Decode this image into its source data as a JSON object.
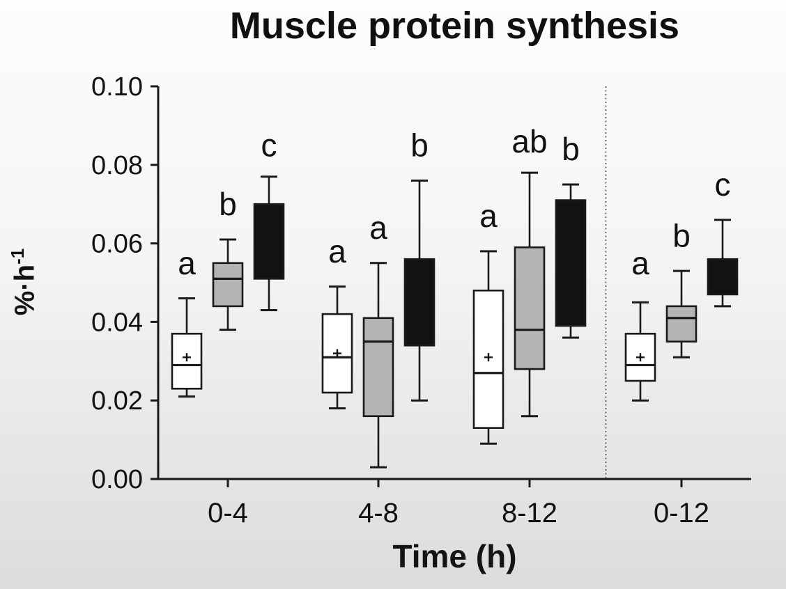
{
  "title": "Muscle protein synthesis",
  "colors": {
    "axis_line": "#1a1a1a",
    "text": "#111111",
    "white_box_fill": "#ffffff",
    "gray_box_fill": "#b4b4b4",
    "black_box_fill": "#121212",
    "divider": "#444444",
    "background_top": "#fdfdfd",
    "background_bottom": "#dcdcdc"
  },
  "chart_data": {
    "type": "boxplot",
    "title": "Muscle protein synthesis",
    "xlabel": "Time (h)",
    "ylabel": "%·h⁻¹",
    "ylabel_base": "%·h",
    "ylabel_sup": "-1",
    "ylim": [
      0,
      0.1
    ],
    "yticks": [
      0,
      0.02,
      0.04,
      0.06,
      0.08,
      0.1
    ],
    "ytick_decimals": 2,
    "categories": [
      "0-4",
      "4-8",
      "8-12",
      "0-12"
    ],
    "divider_before_category": "0-12",
    "grid": false,
    "legend": "none",
    "mean_marker": "+",
    "series": [
      {
        "name": "white",
        "fill_key": "white_box_fill",
        "boxes": [
          {
            "category": "0-4",
            "low": 0.021,
            "q1": 0.023,
            "median": 0.029,
            "mean": 0.031,
            "q3": 0.037,
            "high": 0.046,
            "letter": "a",
            "letter_y": 0.055
          },
          {
            "category": "4-8",
            "low": 0.018,
            "q1": 0.022,
            "median": 0.031,
            "mean": 0.032,
            "q3": 0.042,
            "high": 0.049,
            "letter": "a",
            "letter_y": 0.058
          },
          {
            "category": "8-12",
            "low": 0.009,
            "q1": 0.013,
            "median": 0.027,
            "mean": 0.031,
            "q3": 0.048,
            "high": 0.058,
            "letter": "a",
            "letter_y": 0.067
          },
          {
            "category": "0-12",
            "low": 0.02,
            "q1": 0.025,
            "median": 0.029,
            "mean": 0.031,
            "q3": 0.037,
            "high": 0.045,
            "letter": "a",
            "letter_y": 0.055
          }
        ]
      },
      {
        "name": "gray",
        "fill_key": "gray_box_fill",
        "boxes": [
          {
            "category": "0-4",
            "low": 0.038,
            "q1": 0.044,
            "median": 0.051,
            "mean": null,
            "q3": 0.055,
            "high": 0.061,
            "letter": "b",
            "letter_y": 0.07
          },
          {
            "category": "4-8",
            "low": 0.003,
            "q1": 0.016,
            "median": 0.035,
            "mean": null,
            "q3": 0.041,
            "high": 0.055,
            "letter": "a",
            "letter_y": 0.064
          },
          {
            "category": "8-12",
            "low": 0.016,
            "q1": 0.028,
            "median": 0.038,
            "mean": null,
            "q3": 0.059,
            "high": 0.078,
            "letter": "ab",
            "letter_y": 0.086
          },
          {
            "category": "0-12",
            "low": 0.031,
            "q1": 0.035,
            "median": 0.041,
            "mean": null,
            "q3": 0.044,
            "high": 0.053,
            "letter": "b",
            "letter_y": 0.062
          }
        ]
      },
      {
        "name": "black",
        "fill_key": "black_box_fill",
        "boxes": [
          {
            "category": "0-4",
            "low": 0.043,
            "q1": 0.051,
            "median": null,
            "mean": null,
            "q3": 0.07,
            "high": 0.077,
            "letter": "c",
            "letter_y": 0.085
          },
          {
            "category": "4-8",
            "low": 0.02,
            "q1": 0.034,
            "median": null,
            "mean": null,
            "q3": 0.056,
            "high": 0.076,
            "letter": "b",
            "letter_y": 0.085
          },
          {
            "category": "8-12",
            "low": 0.036,
            "q1": 0.039,
            "median": null,
            "mean": null,
            "q3": 0.071,
            "high": 0.075,
            "letter": "b",
            "letter_y": 0.084
          },
          {
            "category": "0-12",
            "low": 0.044,
            "q1": 0.047,
            "median": null,
            "mean": null,
            "q3": 0.056,
            "high": 0.066,
            "letter": "c",
            "letter_y": 0.075
          }
        ]
      }
    ]
  }
}
